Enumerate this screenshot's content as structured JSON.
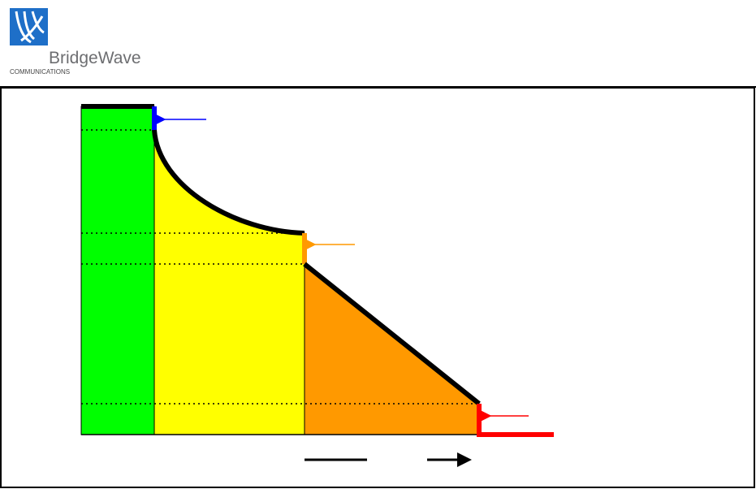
{
  "logo": {
    "name": "BridgeWave",
    "tagline": "COMMUNICATIONS"
  }
}
